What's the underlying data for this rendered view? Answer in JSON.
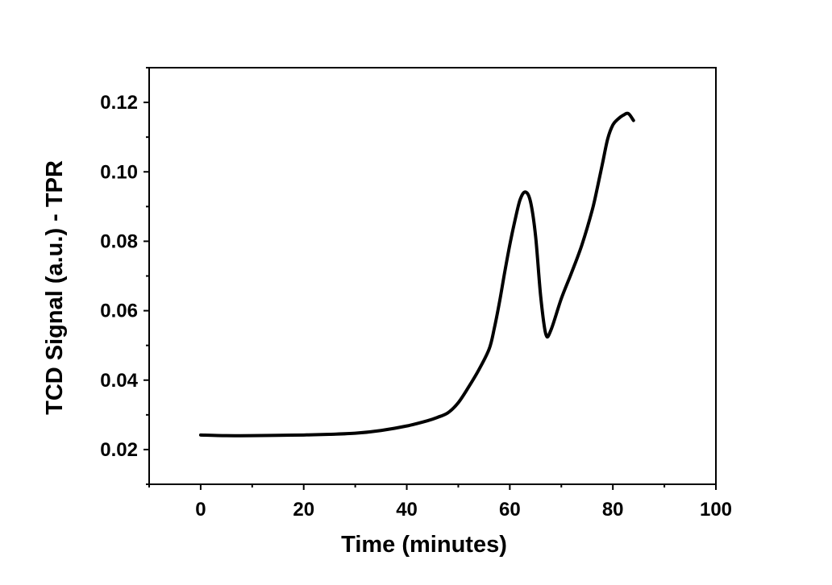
{
  "chart_data": {
    "type": "line",
    "title": "",
    "xlabel": "Time (minutes)",
    "ylabel": "TCD Signal (a.u.) - TPR",
    "xlim": [
      -10,
      100
    ],
    "ylim": [
      0.01,
      0.13
    ],
    "xticks": [
      0,
      20,
      40,
      60,
      80,
      100
    ],
    "xtick_labels": [
      "0",
      "20",
      "40",
      "60",
      "80",
      "100"
    ],
    "yticks": [
      0.02,
      0.04,
      0.06,
      0.08,
      0.1,
      0.12
    ],
    "ytick_labels": [
      "0.02",
      "0.04",
      "0.06",
      "0.08",
      "0.10",
      "0.12"
    ],
    "grid": false,
    "legend": "none",
    "series": [
      {
        "color": "#000000",
        "x": [
          0,
          5,
          10,
          15,
          20,
          25,
          30,
          35,
          40,
          44,
          46,
          48,
          50,
          52,
          54,
          56,
          57,
          58,
          59,
          60,
          61,
          62,
          63,
          64,
          65,
          66,
          67,
          68,
          70,
          72,
          74,
          76,
          77,
          78,
          79,
          80,
          81,
          82,
          83,
          84
        ],
        "y": [
          0.0242,
          0.024,
          0.024,
          0.0241,
          0.0242,
          0.0244,
          0.0247,
          0.0255,
          0.0268,
          0.0283,
          0.0293,
          0.0306,
          0.0335,
          0.038,
          0.043,
          0.049,
          0.055,
          0.0625,
          0.071,
          0.079,
          0.086,
          0.092,
          0.0942,
          0.0915,
          0.0815,
          0.064,
          0.0532,
          0.0545,
          0.0635,
          0.071,
          0.079,
          0.089,
          0.0955,
          0.1025,
          0.1095,
          0.1135,
          0.1152,
          0.1163,
          0.1168,
          0.1148
        ]
      }
    ]
  }
}
